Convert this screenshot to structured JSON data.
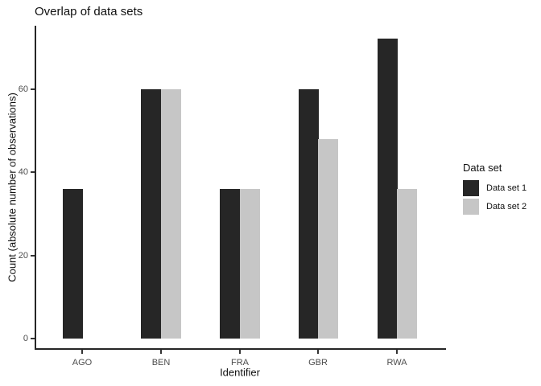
{
  "chart_data": {
    "type": "bar",
    "title": "Overlap of data sets",
    "xlabel": "Identifier",
    "ylabel": "Count (absolute number of observations)",
    "categories": [
      "AGO",
      "BEN",
      "FRA",
      "GBR",
      "RWA"
    ],
    "series": [
      {
        "name": "Data set 1",
        "color": "#262626",
        "values": [
          36,
          60,
          36,
          60,
          72
        ]
      },
      {
        "name": "Data set 2",
        "color": "#c6c6c6",
        "values": [
          null,
          60,
          36,
          48,
          36
        ]
      }
    ],
    "yticks": [
      0,
      20,
      40,
      60
    ],
    "ylim": [
      0,
      75
    ],
    "grid": false,
    "legend_title": "Data set",
    "legend_position": "right",
    "legend_labels": [
      "Data set 1",
      "Data set 2"
    ],
    "bar_colors": {
      "dark": "#262626",
      "light": "#c6c6c6"
    }
  }
}
